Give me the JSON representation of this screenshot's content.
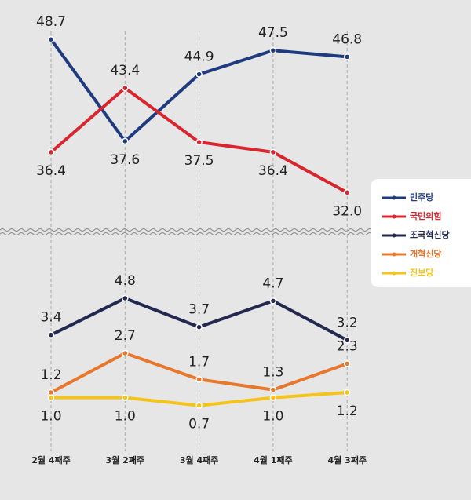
{
  "chart_data": {
    "type": "line",
    "categories": [
      "2월 4째주",
      "3월 2째주",
      "3월 4째주",
      "4월 1째주",
      "4월 3째주"
    ],
    "ylim": [
      28,
      53
    ],
    "y2lim": [
      -0.9,
      7.2
    ],
    "broken_axis": true,
    "series": [
      {
        "name": "민주당",
        "color": "#1f3b80",
        "values": [
          48.7,
          37.6,
          44.9,
          47.5,
          46.8
        ],
        "value_labels": [
          "48.7",
          "37.6",
          "44.9",
          "47.5",
          "46.8"
        ]
      },
      {
        "name": "국민의힘",
        "color": "#d9252e",
        "values": [
          36.4,
          43.4,
          37.5,
          36.4,
          32.0
        ],
        "value_labels": [
          "36.4",
          "43.4",
          "37.5",
          "36.4",
          "32.0"
        ]
      },
      {
        "name": "조국혁신당",
        "color": "#23284f",
        "axis": "y2",
        "values": [
          3.4,
          4.8,
          3.7,
          4.7,
          3.2
        ],
        "value_labels": [
          "3.4",
          "4.8",
          "3.7",
          "4.7",
          "3.2"
        ]
      },
      {
        "name": "개혁신당",
        "color": "#e8772c",
        "axis": "y2",
        "values": [
          1.2,
          2.7,
          1.7,
          1.3,
          2.3
        ],
        "value_labels": [
          "1.2",
          "2.7",
          "1.7",
          "1.3",
          "2.3"
        ]
      },
      {
        "name": "진보당",
        "color": "#f5c41a",
        "axis": "y2",
        "values": [
          1.0,
          1.0,
          0.7,
          1.0,
          1.2
        ],
        "value_labels": [
          "1.0",
          "1.0",
          "0.7",
          "1.0",
          "1.2"
        ]
      }
    ]
  }
}
